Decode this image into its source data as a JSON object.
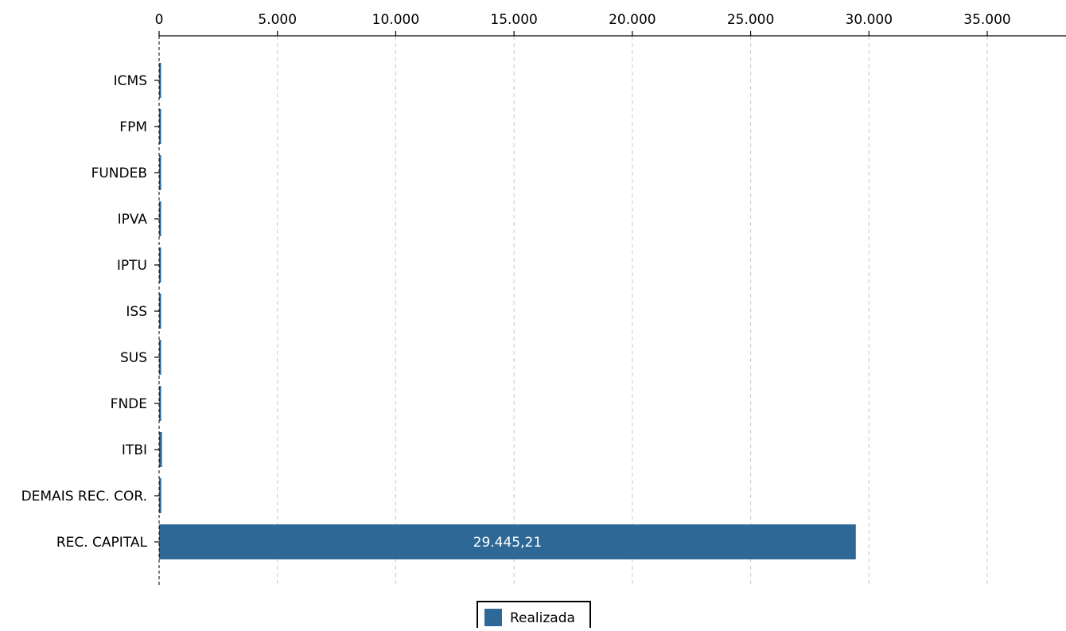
{
  "chart_data": {
    "type": "bar",
    "orientation": "horizontal",
    "title": "",
    "xlabel": "",
    "ylabel": "",
    "categories": [
      "ICMS",
      "FPM",
      "FUNDEB",
      "IPVA",
      "IPTU",
      "ISS",
      "SUS",
      "FNDE",
      "ITBI",
      "DEMAIS REC. COR.",
      "REC. CAPITAL"
    ],
    "series": [
      {
        "name": "Realizada",
        "color": "#2e6897",
        "values": [
          60,
          50,
          45,
          45,
          40,
          35,
          40,
          40,
          120,
          90,
          29445.21
        ]
      }
    ],
    "data_labels": [
      {
        "category": "REC. CAPITAL",
        "text": "29.445,21"
      }
    ],
    "xlim": [
      0,
      37500
    ],
    "xticks": [
      0,
      5000,
      10000,
      15000,
      20000,
      25000,
      30000,
      35000
    ],
    "xtick_labels": [
      "0",
      "5.000",
      "10.000",
      "15.000",
      "20.000",
      "25.000",
      "30.000",
      "35.000"
    ],
    "x_axis_position": "top",
    "grid": "vertical dashed",
    "legend": {
      "placement": "bottom-center",
      "entries": [
        "Realizada"
      ]
    }
  }
}
